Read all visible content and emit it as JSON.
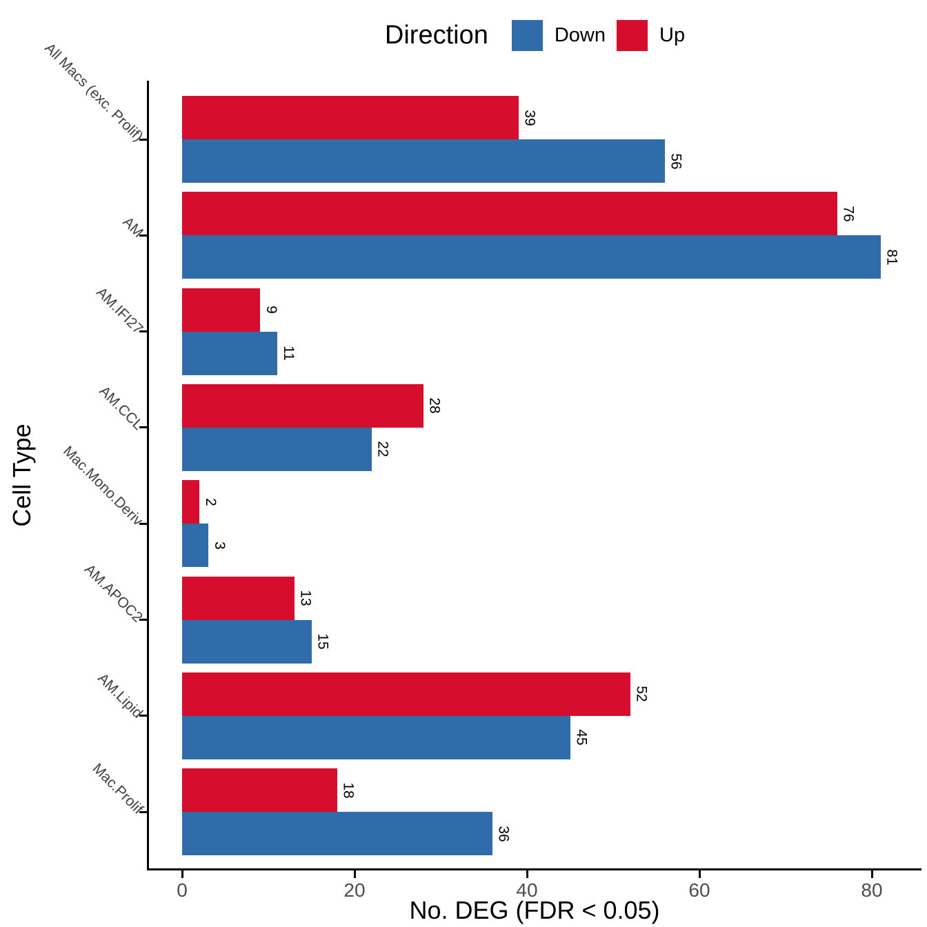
{
  "legend": {
    "title": "Direction",
    "items": [
      {
        "label": "Down",
        "color": "#2F6CA9"
      },
      {
        "label": "Up",
        "color": "#D60D2C"
      }
    ]
  },
  "axes": {
    "x_title": "No. DEG (FDR < 0.05)",
    "y_title": "Cell Type",
    "x_ticks": [
      0,
      20,
      40,
      60,
      80
    ]
  },
  "chart_data": {
    "type": "bar",
    "orientation": "horizontal",
    "title": "",
    "xlabel": "No. DEG (FDR < 0.05)",
    "ylabel": "Cell Type",
    "xlim": [
      0,
      85
    ],
    "grid": false,
    "legend_position": "top",
    "bar_labels": true,
    "bar_label_rotation_deg": 90,
    "category_label_rotation_deg": 45,
    "categories": [
      "All Macs (exc. Prolif)",
      "AM",
      "AM.IFI27",
      "AM.CCL",
      "Mac.Mono.Deriv",
      "AM.APOC2",
      "AM.Lipid",
      "Mac.Prolif"
    ],
    "series": [
      {
        "name": "Up",
        "color": "#D60D2C",
        "values": [
          39,
          76,
          9,
          28,
          2,
          13,
          52,
          18
        ]
      },
      {
        "name": "Down",
        "color": "#2F6CA9",
        "values": [
          56,
          81,
          11,
          22,
          3,
          15,
          45,
          36
        ]
      }
    ]
  }
}
